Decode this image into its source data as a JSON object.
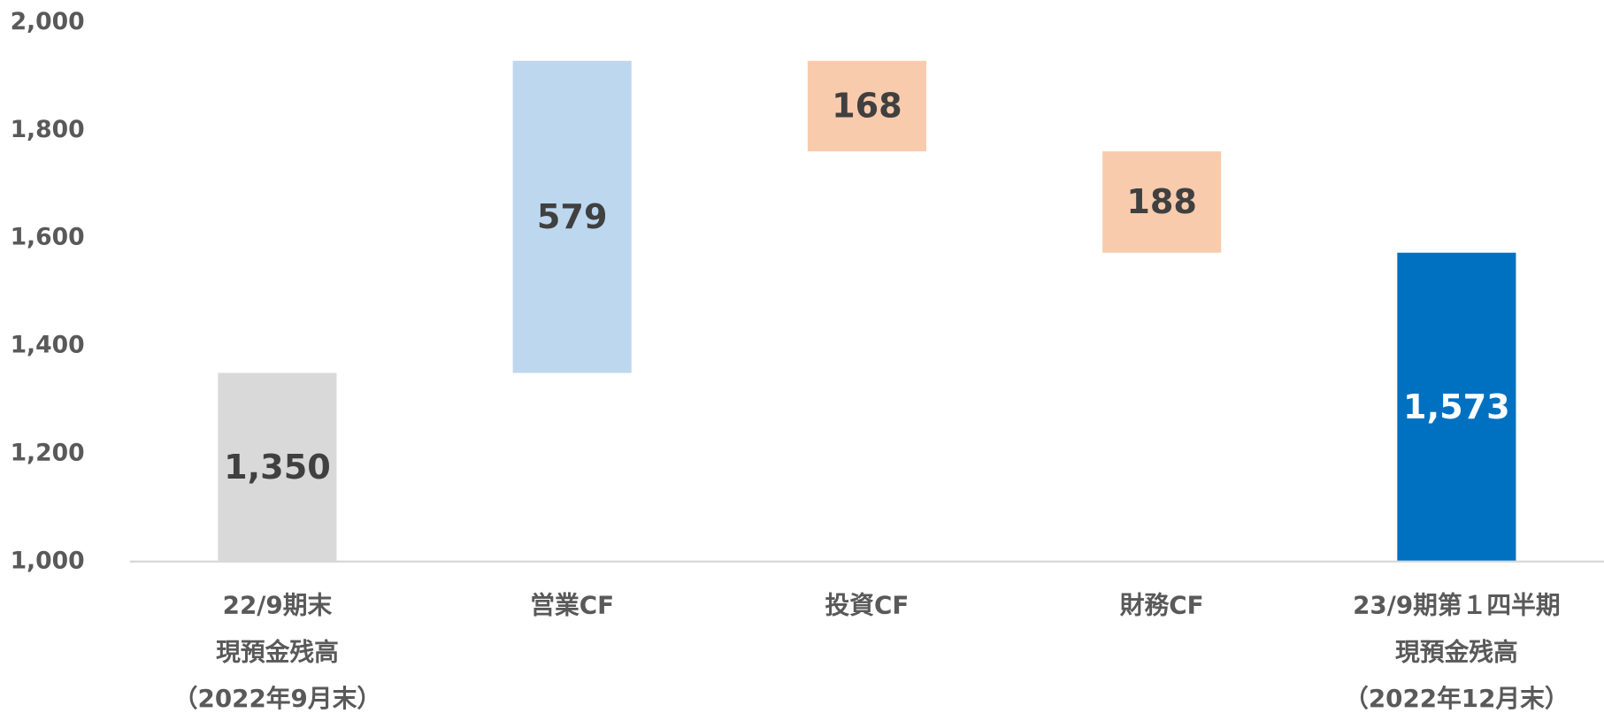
{
  "chart_data": {
    "type": "waterfall",
    "categories": [
      [
        "22/9期末",
        "現預金残高",
        "（2022年9月末）"
      ],
      [
        "営業CF"
      ],
      [
        "投資CF"
      ],
      [
        "財務CF"
      ],
      [
        "23/9期第１四半期",
        "現預金残高",
        "（2022年12月末）"
      ]
    ],
    "values": [
      1350,
      579,
      -168,
      -188,
      1573
    ],
    "value_labels": [
      "1,350",
      "579",
      "168",
      "188",
      "1,573"
    ],
    "colors": [
      "#d9d9d9",
      "#bdd7ee",
      "#f8cbad",
      "#f8cbad",
      "#0070c0"
    ],
    "label_colors": [
      "#404040",
      "#404040",
      "#404040",
      "#404040",
      "#ffffff"
    ],
    "ylim": [
      1000,
      2000
    ],
    "yticks": [
      {
        "value": 1000,
        "label": "1,000"
      },
      {
        "value": 1200,
        "label": "1,200"
      },
      {
        "value": 1400,
        "label": "1,400"
      },
      {
        "value": 1600,
        "label": "1,600"
      },
      {
        "value": 1800,
        "label": "1,800"
      },
      {
        "value": 2000,
        "label": "2,000"
      }
    ],
    "grid": false
  }
}
